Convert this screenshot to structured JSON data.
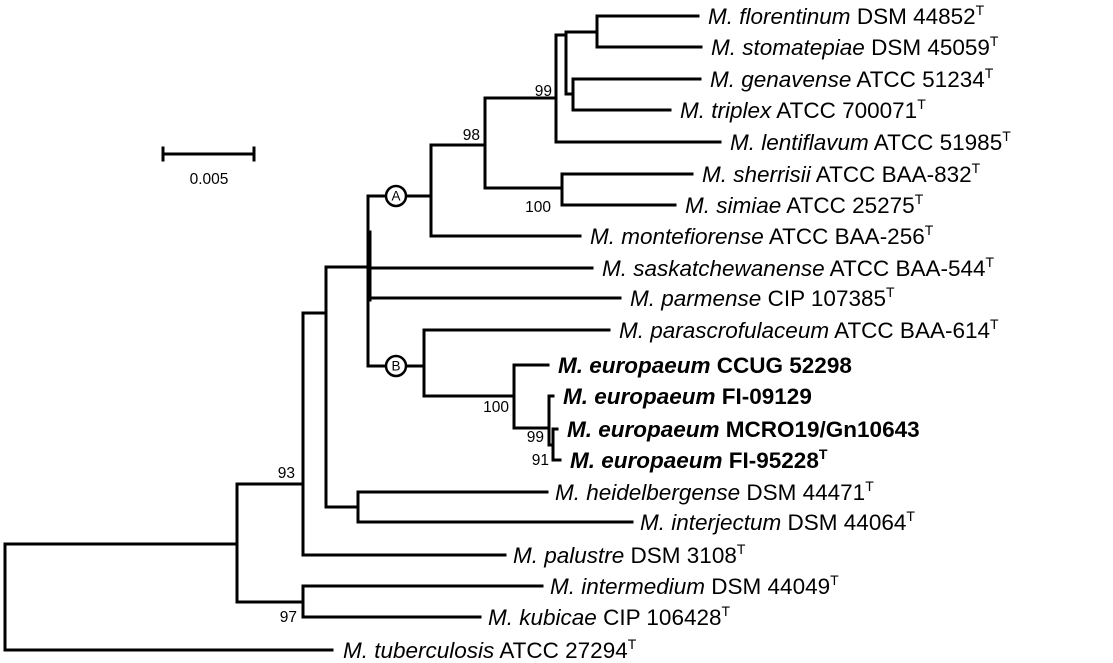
{
  "scale_bar": {
    "label": "0.005"
  },
  "clade_labels": {
    "a": "A",
    "b": "B"
  },
  "bootstrap": {
    "n99_top": "99",
    "n98": "98",
    "n100_simiae": "100",
    "n93": "93",
    "n100_europaeum": "100",
    "n99_europaeum": "99",
    "n91": "91",
    "n97": "97"
  },
  "taxa": [
    {
      "species": "M. florentinum",
      "strain": " DSM 44852",
      "sup": "T",
      "bold": false
    },
    {
      "species": "M. stomatepiae",
      "strain": " DSM 45059",
      "sup": "T",
      "bold": false
    },
    {
      "species": "M. genavense",
      "strain": " ATCC 51234",
      "sup": "T",
      "bold": false
    },
    {
      "species": "M. triplex",
      "strain": " ATCC 700071",
      "sup": "T",
      "bold": false
    },
    {
      "species": "M. lentiflavum",
      "strain": " ATCC 51985",
      "sup": "T",
      "bold": false
    },
    {
      "species": "M. sherrisii",
      "strain": " ATCC BAA-832",
      "sup": "T",
      "bold": false
    },
    {
      "species": "M. simiae",
      "strain": " ATCC 25275",
      "sup": "T",
      "bold": false
    },
    {
      "species": "M. montefiorense",
      "strain": " ATCC BAA-256",
      "sup": "T",
      "bold": false
    },
    {
      "species": "M. saskatchewanense",
      "strain": " ATCC BAA-544",
      "sup": "T",
      "bold": false
    },
    {
      "species": "M. parmense",
      "strain": " CIP 107385",
      "sup": "T",
      "bold": false
    },
    {
      "species": "M. parascrofulaceum",
      "strain": " ATCC BAA-614",
      "sup": "T",
      "bold": false
    },
    {
      "species": "M. europaeum",
      "strain": " CCUG 52298",
      "sup": "",
      "bold": true
    },
    {
      "species": "M. europaeum",
      "strain": " FI-09129",
      "sup": "",
      "bold": true
    },
    {
      "species": "M. europaeum",
      "strain": " MCRO19/Gn10643",
      "sup": "",
      "bold": true
    },
    {
      "species": "M. europaeum",
      "strain": " FI-95228",
      "sup": "T",
      "bold": true
    },
    {
      "species": "M. heidelbergense",
      "strain": " DSM 44471",
      "sup": "T",
      "bold": false
    },
    {
      "species": "M. interjectum",
      "strain": " DSM 44064",
      "sup": "T",
      "bold": false
    },
    {
      "species": "M. palustre",
      "strain": " DSM 3108",
      "sup": "T",
      "bold": false
    },
    {
      "species": "M. intermedium",
      "strain": " DSM 44049",
      "sup": "T",
      "bold": false
    },
    {
      "species": "M. kubicae",
      "strain": " CIP 106428",
      "sup": "T",
      "bold": false
    },
    {
      "species": "M. tuberculosis",
      "strain": " ATCC 27294",
      "sup": "T",
      "bold": false
    }
  ]
}
